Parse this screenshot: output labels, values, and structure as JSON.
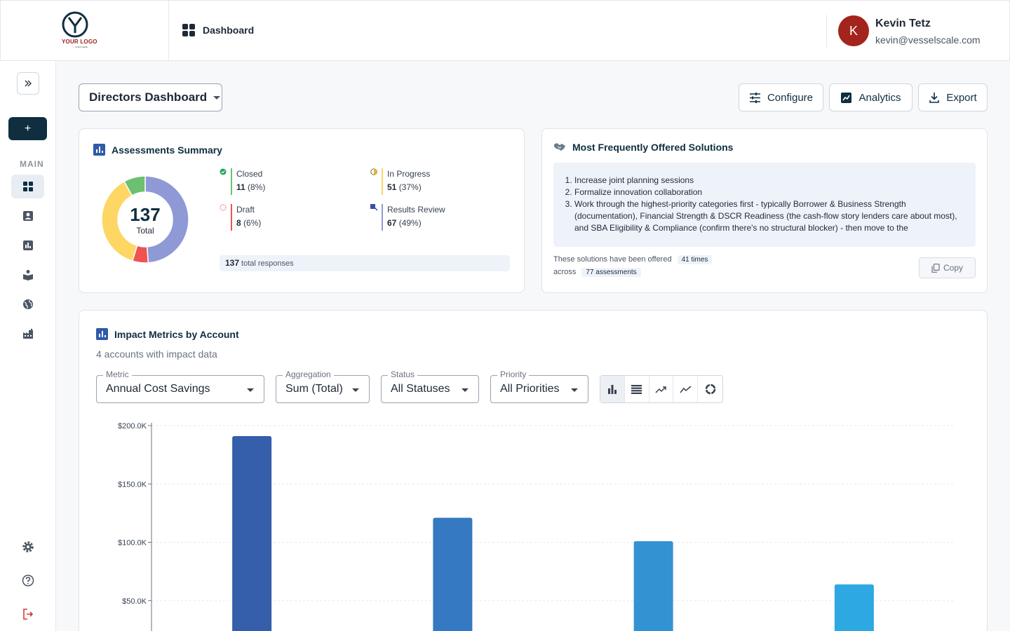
{
  "header": {
    "logo_text": "YOUR LOGO",
    "logo_sub": "GOES HERE",
    "page": "Dashboard",
    "user": {
      "initial": "K",
      "name": "Kevin Tetz",
      "email": "kevin@vesselscale.com"
    }
  },
  "sidebar": {
    "section_label": "MAIN",
    "new_label": "+",
    "items": [
      "dashboard-icon",
      "contacts-icon",
      "reports-icon",
      "learning-icon",
      "globe-icon",
      "factory-icon"
    ],
    "bottom": [
      "settings-icon",
      "help-icon",
      "logout-icon"
    ]
  },
  "toolbar": {
    "dashboard_select": "Directors Dashboard",
    "configure": "Configure",
    "analytics": "Analytics",
    "export": "Export"
  },
  "assessments": {
    "title": "Assessments Summary",
    "total": "137",
    "total_label": "Total",
    "legend": [
      {
        "name": "Closed",
        "count": "11",
        "pct": "(8%)",
        "color": "#6cc070"
      },
      {
        "name": "In Progress",
        "count": "51",
        "pct": "(37%)",
        "color": "#fdd663"
      },
      {
        "name": "Draft",
        "count": "8",
        "pct": "(6%)",
        "color": "#ef5350"
      },
      {
        "name": "Results Review",
        "count": "67",
        "pct": "(49%)",
        "color": "#8e99d6"
      }
    ],
    "responses_count": "137",
    "responses_label": "total responses"
  },
  "solutions": {
    "title": "Most Frequently Offered Solutions",
    "items": [
      "Increase joint planning sessions",
      "Formalize innovation collaboration",
      "Work through the highest-priority categories first - typically Borrower & Business Strength (documentation), Financial Strength & DSCR Readiness (the cash-flow story lenders care about most), and SBA Eligibility & Compliance (confirm there's no structural blocker) - then move to the"
    ],
    "offered_prefix": "These solutions have been offered",
    "times_chip": "41 times",
    "across": "across",
    "assessments_chip": "77 assessments",
    "copy": "Copy"
  },
  "impact": {
    "title": "Impact Metrics by Account",
    "subtitle": "4 accounts with impact data",
    "filters": [
      {
        "label": "Metric",
        "value": "Annual Cost Savings"
      },
      {
        "label": "Aggregation",
        "value": "Sum (Total)"
      },
      {
        "label": "Status",
        "value": "All Statuses"
      },
      {
        "label": "Priority",
        "value": "All Priorities"
      }
    ]
  },
  "chart_data": {
    "type": "bar",
    "categories": [
      "",
      "",
      "",
      ""
    ],
    "values": [
      191000,
      121000,
      101000,
      64000
    ],
    "colors": [
      "#355eab",
      "#3479c2",
      "#3392d2",
      "#2da8e3"
    ],
    "yticks": [
      {
        "value": 200000,
        "label": "$200.0K"
      },
      {
        "value": 150000,
        "label": "$150.0K"
      },
      {
        "value": 100000,
        "label": "$100.0K"
      },
      {
        "value": 50000,
        "label": "$50.0K"
      }
    ],
    "ylim": [
      0,
      200000
    ],
    "grid": true
  }
}
